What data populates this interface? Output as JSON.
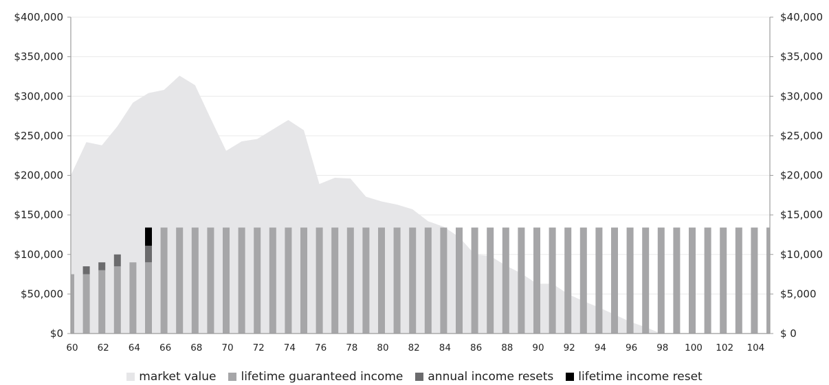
{
  "chart_data": {
    "type": "bar",
    "left_axis": {
      "ticks": [
        0,
        50000,
        100000,
        150000,
        200000,
        250000,
        300000,
        350000,
        400000
      ],
      "tick_labels": [
        "$0",
        "$50,000",
        "$100,000",
        "$150,000",
        "$200,000",
        "$250,000",
        "$300,000",
        "$350,000",
        "$400,000"
      ],
      "range": [
        0,
        400000
      ]
    },
    "right_axis": {
      "ticks": [
        0,
        5000,
        10000,
        15000,
        20000,
        25000,
        30000,
        35000,
        40000
      ],
      "tick_labels": [
        "$ 0",
        "$5,000",
        "$10,000",
        "$15,000",
        "$20,000",
        "$25,000",
        "$30,000",
        "$35,000",
        "$40,000"
      ],
      "range": [
        0,
        40000
      ]
    },
    "x_axis": {
      "tick_labels": [
        "60",
        "62",
        "64",
        "66",
        "68",
        "70",
        "72",
        "74",
        "76",
        "78",
        "80",
        "82",
        "84",
        "86",
        "88",
        "90",
        "92",
        "94",
        "96",
        "98",
        "100",
        "102",
        "104"
      ],
      "ages": [
        60,
        61,
        62,
        63,
        64,
        65,
        66,
        67,
        68,
        69,
        70,
        71,
        72,
        73,
        74,
        75,
        76,
        77,
        78,
        79,
        80,
        81,
        82,
        83,
        84,
        85,
        86,
        87,
        88,
        89,
        90,
        91,
        92,
        93,
        94,
        95,
        96,
        97,
        98,
        99,
        100,
        101,
        102,
        103,
        104,
        105
      ]
    },
    "area_series": {
      "name": "market value",
      "axis": "left",
      "color": "#e6e6e8",
      "values": [
        200000,
        242000,
        238000,
        262000,
        292000,
        304000,
        308000,
        326000,
        314000,
        272000,
        231000,
        243000,
        246000,
        258000,
        270000,
        257000,
        189000,
        197000,
        196000,
        173000,
        167000,
        163000,
        157000,
        142000,
        135000,
        122000,
        100000,
        98000,
        86000,
        76000,
        63000,
        63000,
        50000,
        41000,
        33000,
        24000,
        15000,
        8000,
        0,
        0,
        0,
        0,
        0,
        0,
        0,
        0
      ]
    },
    "bar_series": [
      {
        "name": "lifetime guaranteed income",
        "axis": "right",
        "color": "#a6a6a8",
        "values": [
          7500,
          7500,
          8000,
          8500,
          9000,
          9000,
          13400,
          13400,
          13400,
          13400,
          13400,
          13400,
          13400,
          13400,
          13400,
          13400,
          13400,
          13400,
          13400,
          13400,
          13400,
          13400,
          13400,
          13400,
          13400,
          13400,
          13400,
          13400,
          13400,
          13400,
          13400,
          13400,
          13400,
          13400,
          13400,
          13400,
          13400,
          13400,
          13400,
          13400,
          13400,
          13400,
          13400,
          13400,
          13400,
          13400
        ]
      },
      {
        "name": "annual income resets",
        "axis": "right",
        "color": "#6b6b6d",
        "values": [
          0,
          1000,
          1000,
          1500,
          0,
          2100,
          0,
          0,
          0,
          0,
          0,
          0,
          0,
          0,
          0,
          0,
          0,
          0,
          0,
          0,
          0,
          0,
          0,
          0,
          0,
          0,
          0,
          0,
          0,
          0,
          0,
          0,
          0,
          0,
          0,
          0,
          0,
          0,
          0,
          0,
          0,
          0,
          0,
          0,
          0,
          0
        ]
      },
      {
        "name": "lifetime income reset",
        "axis": "right",
        "color": "#000000",
        "values": [
          0,
          0,
          0,
          0,
          0,
          2300,
          0,
          0,
          0,
          0,
          0,
          0,
          0,
          0,
          0,
          0,
          0,
          0,
          0,
          0,
          0,
          0,
          0,
          0,
          0,
          0,
          0,
          0,
          0,
          0,
          0,
          0,
          0,
          0,
          0,
          0,
          0,
          0,
          0,
          0,
          0,
          0,
          0,
          0,
          0,
          0
        ]
      }
    ],
    "legend": {
      "placement": "bottom",
      "items": [
        {
          "label": "market value",
          "color": "#e6e6e8"
        },
        {
          "label": "lifetime guaranteed income",
          "color": "#a6a6a8"
        },
        {
          "label": "annual income resets",
          "color": "#6b6b6d"
        },
        {
          "label": "lifetime income reset",
          "color": "#000000"
        }
      ]
    },
    "grid": true,
    "grid_color": "#e9e9e9",
    "axis_color": "#9b9b9b"
  }
}
